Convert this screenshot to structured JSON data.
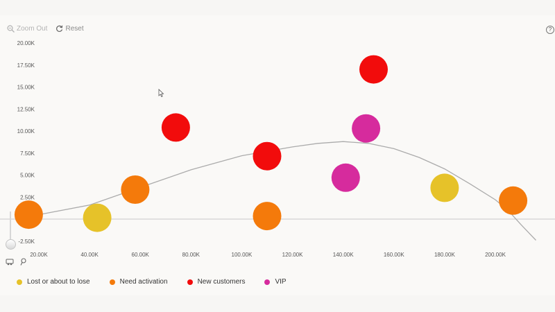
{
  "toolbar": {
    "zoom_out_label": "Zoom Out",
    "reset_label": "Reset",
    "help_label": "?"
  },
  "icons": [
    "zoom-out-icon",
    "reset-icon",
    "help-icon",
    "select-tool-icon",
    "pin-tool-icon",
    "cursor-icon"
  ],
  "chart_data": {
    "type": "scatter",
    "xlim": [
      14000,
      216000
    ],
    "ylim": [
      -3000,
      20500
    ],
    "x_ticks": [
      20000,
      40000,
      60000,
      80000,
      100000,
      120000,
      140000,
      160000,
      180000,
      200000
    ],
    "x_tick_labels": [
      "20.00K",
      "40.00K",
      "60.00K",
      "80.00K",
      "100.00K",
      "120.00K",
      "140.00K",
      "160.00K",
      "180.00K",
      "200.00K"
    ],
    "y_ticks": [
      -2500,
      0,
      2500,
      5000,
      7500,
      10000,
      12500,
      15000,
      17500,
      20000
    ],
    "y_tick_labels": [
      "-2.50K",
      "0.00",
      "2.50K",
      "5.00K",
      "7.50K",
      "10.00K",
      "12.50K",
      "15.00K",
      "17.50K",
      "20.00K"
    ],
    "series": [
      {
        "name": "Lost or about to lose",
        "color": "#e6c229",
        "points": [
          [
            43000,
            150
          ],
          [
            180000,
            3550
          ]
        ]
      },
      {
        "name": "Need activation",
        "color": "#f47a0b",
        "points": [
          [
            16000,
            500
          ],
          [
            58000,
            3350
          ],
          [
            110000,
            350
          ],
          [
            207000,
            2100
          ]
        ]
      },
      {
        "name": "New customers",
        "color": "#f20c0c",
        "points": [
          [
            74000,
            10400
          ],
          [
            110000,
            7150
          ],
          [
            152000,
            17000
          ]
        ]
      },
      {
        "name": "VIP",
        "color": "#d62b9d",
        "points": [
          [
            141000,
            4700
          ],
          [
            149000,
            10300
          ]
        ]
      }
    ],
    "trendline": {
      "color": "#ababab",
      "points": [
        [
          13000,
          300
        ],
        [
          20000,
          500
        ],
        [
          40000,
          1600
        ],
        [
          60000,
          3600
        ],
        [
          80000,
          5600
        ],
        [
          100000,
          7200
        ],
        [
          120000,
          8200
        ],
        [
          130000,
          8600
        ],
        [
          140000,
          8800
        ],
        [
          150000,
          8600
        ],
        [
          160000,
          8000
        ],
        [
          170000,
          7000
        ],
        [
          180000,
          5700
        ],
        [
          190000,
          4000
        ],
        [
          200000,
          2200
        ],
        [
          205000,
          1000
        ],
        [
          210000,
          -600
        ],
        [
          216000,
          -2400
        ]
      ]
    },
    "legend": [
      {
        "label": "Lost or about to lose",
        "color": "#e6c229"
      },
      {
        "label": "Need activation",
        "color": "#f47a0b"
      },
      {
        "label": "New customers",
        "color": "#f20c0c"
      },
      {
        "label": "VIP",
        "color": "#d62b9d"
      }
    ]
  }
}
